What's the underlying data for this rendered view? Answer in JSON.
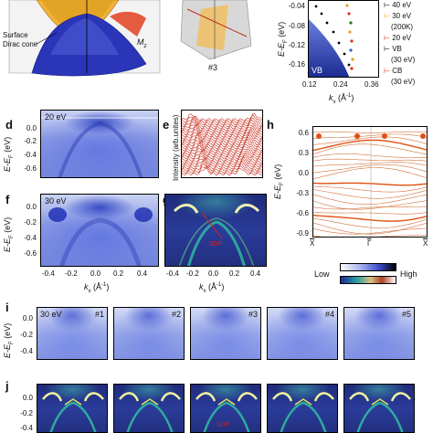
{
  "panels": {
    "top_left": {
      "label_surface": "Surface",
      "label_dirac": "Dirac cone",
      "label_mz": "M",
      "label_mz_sub": "z"
    },
    "top_mid": {
      "label": "#3"
    },
    "top_right": {
      "yticks": [
        "-0.04",
        "-0.08",
        "-0.12",
        "-0.16"
      ],
      "xticks": [
        "0.12",
        "0.24",
        "0.36"
      ],
      "ylabel": "E-E",
      "ylabel_sub": "F",
      "ylabel_unit": " (eV)",
      "xlabel": "k",
      "xlabel_sub": "x",
      "xlabel_unit": " (Å",
      "xlabel_exp": "-1",
      "xlabel_close": ")",
      "vb_label": "VB",
      "legend": [
        {
          "text": "40 eV",
          "color": "#000000"
        },
        {
          "text": "30 eV",
          "color": "#e8a020"
        },
        {
          "text": "(200K)",
          "color": "#000000"
        },
        {
          "text": "20 eV",
          "color": "#e03020"
        },
        {
          "text": "VB",
          "color": "#000000"
        },
        {
          "text": "(30 eV)",
          "color": "#000000"
        },
        {
          "text": "CB",
          "color": "#e03020"
        },
        {
          "text": "(30 eV)",
          "color": "#000000"
        }
      ]
    },
    "d": {
      "label": "d",
      "energy": "20 eV",
      "yticks": [
        "0.0",
        "-0.2",
        "-0.4",
        "-0.6"
      ]
    },
    "e": {
      "label": "e",
      "ylabel": "Intensity (arb.unites)"
    },
    "f": {
      "label": "f",
      "energy": "30 eV",
      "yticks": [
        "0.0",
        "-0.2",
        "-0.4",
        "-0.6"
      ],
      "xticks": [
        "-0.4",
        "-0.2",
        "0.0",
        "0.2",
        "0.4"
      ]
    },
    "g": {
      "label": "g",
      "annotation": "SDP",
      "xticks": [
        "-0.4",
        "-0.2",
        "0.0",
        "0.2",
        "0.4"
      ]
    },
    "h": {
      "label": "h",
      "yticks": [
        "0.6",
        "0.3",
        "0.0",
        "-0.3",
        "-0.6",
        "-0.9"
      ],
      "xticks": [
        "X",
        "Γ",
        "X"
      ]
    },
    "colorbar": {
      "low": "Low",
      "high": "High"
    },
    "i": {
      "label": "i",
      "energy": "30 eV",
      "subs": [
        "#1",
        "#2",
        "#3",
        "#4",
        "#5"
      ],
      "yticks": [
        "0.0",
        "-0.2",
        "-0.4"
      ]
    },
    "j": {
      "label": "j",
      "yticks": [
        "0.0",
        "-0.2",
        "-0.4"
      ],
      "annotation": "SDP"
    }
  },
  "shared_axis": {
    "ylabel": "E-E",
    "ylabel_sub": "F",
    "ylabel_unit": " (eV)",
    "xlabel": "k",
    "xlabel_sub": "x",
    "xlabel_unit": " (Å",
    "xlabel_exp": "-1",
    "xlabel_close": ")"
  }
}
